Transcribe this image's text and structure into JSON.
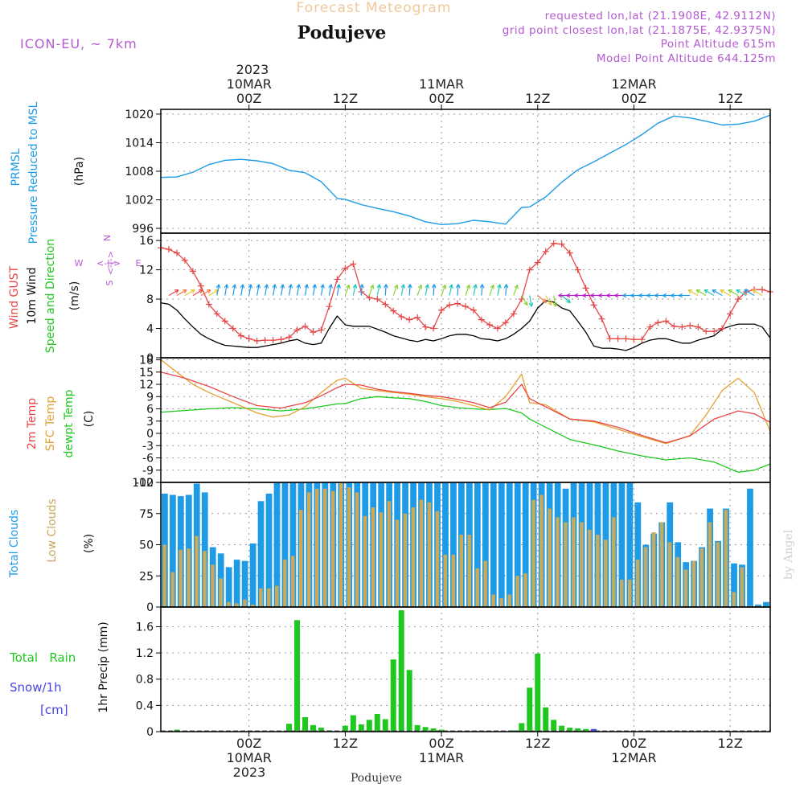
{
  "header": {
    "product": "Forecast Meteogram",
    "location": "Podujeve",
    "model": "ICON-EU, ~ 7km",
    "requested": "requested lon,lat (21.1908E, 42.9112N)",
    "gridpoint": "grid point closest lon,lat (21.1875E, 42.9375N)",
    "point_alt": "Point Altitude 615m",
    "model_alt": "Model Point Altitude 644.125m"
  },
  "footer": {
    "location": "Podujeve",
    "credit": "by Angel"
  },
  "time_axis": {
    "year": "2023",
    "top_ticks": [
      {
        "t": 0,
        "date": "10MAR",
        "hour": "00Z"
      },
      {
        "t": 12,
        "date": "",
        "hour": "12Z"
      },
      {
        "t": 24,
        "date": "11MAR",
        "hour": "00Z"
      },
      {
        "t": 36,
        "date": "",
        "hour": "12Z"
      },
      {
        "t": 48,
        "date": "12MAR",
        "hour": "00Z"
      },
      {
        "t": 60,
        "date": "",
        "hour": "12Z"
      }
    ],
    "bottom_ticks": [
      {
        "t": 0,
        "hour": "00Z",
        "date": "10MAR"
      },
      {
        "t": 12,
        "hour": "12Z",
        "date": ""
      },
      {
        "t": 24,
        "hour": "00Z",
        "date": "11MAR"
      },
      {
        "t": 36,
        "hour": "12Z",
        "date": ""
      },
      {
        "t": 48,
        "hour": "00Z",
        "date": "12MAR"
      },
      {
        "t": 60,
        "hour": "12Z",
        "date": ""
      }
    ],
    "xlim": [
      -11,
      65
    ]
  },
  "labels": {
    "pressure": {
      "name": "PRMSL",
      "desc": "Pressure Reduced to MSL",
      "unit": "(hPa)"
    },
    "wind": {
      "gust": "Wind GUST",
      "wind10m": "10m Wind",
      "dir": "Speed and Direction",
      "unit": "(m/s)",
      "compass_w": "W",
      "compass_e": "E",
      "compass_n": "N",
      "compass_s": "S"
    },
    "temp": {
      "t2m": "2m Temp",
      "sfc": "SFC Temp",
      "dew": "dewpt Temp",
      "unit": "(C)"
    },
    "clouds": {
      "total": "Total Clouds",
      "low": "Low Clouds",
      "unit": "(%)"
    },
    "precip": {
      "rain": "Total   Rain",
      "snow": "Snow/1h",
      "snow_unit": "[cm]",
      "axis": "1hr Precip (mm)"
    }
  },
  "colors": {
    "pressure": "#1e9be6",
    "gust": "#e64646",
    "wind": "#000000",
    "t2m": "#e64646",
    "sfc": "#e6a032",
    "dew": "#1ec81e",
    "total_clouds": "#1e9be6",
    "low_clouds": "#c8aa5a",
    "rain": "#1ec81e",
    "snow": "#4646e6",
    "purple": "#b45ad2",
    "grid": "#9a9a9a"
  },
  "chart_data": [
    {
      "type": "line",
      "title": "PRMSL Pressure Reduced to MSL",
      "ylabel": "(hPa)",
      "ylim": [
        995,
        1021
      ],
      "yticks": [
        996,
        1002,
        1008,
        1014,
        1020
      ],
      "series": [
        {
          "name": "PRMSL",
          "x": [
            -11,
            -9,
            -7,
            -5,
            -3,
            -1,
            1,
            3,
            5,
            7,
            9,
            11,
            12,
            14,
            16,
            18,
            20,
            22,
            24,
            26,
            28,
            30,
            32,
            34,
            35,
            37,
            39,
            41,
            43,
            45,
            47,
            49,
            51,
            53,
            55,
            57,
            59,
            61,
            63,
            65
          ],
          "values": [
            1006.7,
            1006.8,
            1007.8,
            1009.4,
            1010.3,
            1010.5,
            1010.2,
            1009.6,
            1008.2,
            1007.7,
            1005.8,
            1002.3,
            1002.1,
            1001.0,
            1000.2,
            999.5,
            998.6,
            997.4,
            996.8,
            997.0,
            997.7,
            997.4,
            996.9,
            1000.4,
            1000.5,
            1002.6,
            1005.7,
            1008.3,
            1010.0,
            1011.8,
            1013.6,
            1015.7,
            1018.1,
            1019.6,
            1019.2,
            1018.5,
            1017.7,
            1017.9,
            1018.5,
            1019.8
          ]
        }
      ]
    },
    {
      "type": "line",
      "title": "Wind GUST / 10m Wind Speed and Direction",
      "ylabel": "(m/s)",
      "ylim": [
        0,
        17
      ],
      "yticks": [
        0,
        4,
        8,
        12,
        16
      ],
      "series": [
        {
          "name": "Wind GUST",
          "x": [
            -11,
            -10,
            -9,
            -8,
            -7,
            -6,
            -5,
            -4,
            -3,
            -2,
            -1,
            0,
            1,
            2,
            3,
            4,
            5,
            6,
            7,
            8,
            9,
            10,
            11,
            12,
            13,
            14,
            15,
            16,
            17,
            18,
            19,
            20,
            21,
            22,
            23,
            24,
            25,
            26,
            27,
            28,
            29,
            30,
            31,
            32,
            33,
            34,
            35,
            36,
            37,
            38,
            39,
            40,
            41,
            42,
            43,
            44,
            45,
            46,
            47,
            48,
            49,
            50,
            51,
            52,
            53,
            54,
            55,
            56,
            57,
            58,
            59,
            60,
            61,
            62,
            63,
            64,
            65
          ],
          "values": [
            15.0,
            14.8,
            14.3,
            13.3,
            11.8,
            9.8,
            7.3,
            6.0,
            5.0,
            4.0,
            3.0,
            2.6,
            2.3,
            2.4,
            2.4,
            2.5,
            2.8,
            3.8,
            4.3,
            3.5,
            3.8,
            7.0,
            10.7,
            12.2,
            12.8,
            9.0,
            8.2,
            8.0,
            7.3,
            6.4,
            5.6,
            5.2,
            5.5,
            4.2,
            4.0,
            6.5,
            7.2,
            7.4,
            7.0,
            6.5,
            5.2,
            4.5,
            4.0,
            4.8,
            6.0,
            8.0,
            12.0,
            13.0,
            14.5,
            15.6,
            15.5,
            14.3,
            12.0,
            9.5,
            7.2,
            5.3,
            2.6,
            2.6,
            2.6,
            2.5,
            2.5,
            4.2,
            4.8,
            5.0,
            4.3,
            4.2,
            4.4,
            4.2,
            3.6,
            3.6,
            4.0,
            6.0,
            8.0,
            9.0,
            9.3,
            9.3,
            9.0
          ]
        },
        {
          "name": "10m Wind",
          "x": [
            -11,
            -10,
            -9,
            -8,
            -7,
            -6,
            -5,
            -4,
            -3,
            -2,
            -1,
            0,
            1,
            2,
            3,
            4,
            5,
            6,
            7,
            8,
            9,
            10,
            11,
            12,
            13,
            14,
            15,
            16,
            17,
            18,
            19,
            20,
            21,
            22,
            23,
            24,
            25,
            26,
            27,
            28,
            29,
            30,
            31,
            32,
            33,
            34,
            35,
            36,
            37,
            38,
            39,
            40,
            41,
            42,
            43,
            44,
            45,
            46,
            47,
            48,
            49,
            50,
            51,
            52,
            53,
            54,
            55,
            56,
            57,
            58,
            59,
            60,
            61,
            62,
            63,
            64,
            65
          ],
          "values": [
            7.5,
            7.3,
            6.5,
            5.3,
            4.2,
            3.2,
            2.6,
            2.1,
            1.7,
            1.6,
            1.5,
            1.4,
            1.4,
            1.6,
            1.8,
            2.0,
            2.3,
            2.5,
            2.0,
            1.8,
            2.0,
            4.0,
            5.7,
            4.5,
            4.3,
            4.3,
            4.3,
            3.9,
            3.5,
            3.0,
            2.7,
            2.4,
            2.2,
            2.5,
            2.3,
            2.6,
            3.0,
            3.2,
            3.2,
            3.0,
            2.6,
            2.5,
            2.3,
            2.6,
            3.2,
            4.0,
            5.0,
            6.8,
            7.8,
            7.6,
            6.8,
            6.4,
            5.0,
            3.5,
            1.6,
            1.3,
            1.3,
            1.2,
            1.0,
            1.4,
            2.0,
            2.4,
            2.6,
            2.6,
            2.3,
            2.0,
            2.0,
            2.4,
            2.7,
            3.0,
            3.9,
            4.3,
            4.6,
            4.6,
            4.6,
            4.2,
            2.7
          ]
        }
      ]
    },
    {
      "type": "line",
      "title": "2m Temp / SFC Temp / dewpt Temp",
      "ylabel": "(C)",
      "ylim": [
        -12,
        18.5
      ],
      "yticks": [
        -12,
        -9,
        -6,
        -3,
        0,
        3,
        6,
        9,
        12,
        15,
        18
      ],
      "series": [
        {
          "name": "2m Temp",
          "x": [
            -11,
            -8,
            -5,
            -2,
            1,
            4,
            7,
            9,
            11,
            12,
            14,
            16,
            18,
            20,
            22,
            24,
            26,
            28,
            30,
            32,
            34,
            35,
            37,
            40,
            43,
            46,
            49,
            52,
            55,
            58,
            61,
            63,
            65
          ],
          "values": [
            15,
            13.5,
            11.5,
            9,
            6.8,
            6.2,
            7.5,
            9.2,
            11.2,
            12.0,
            11.8,
            10.8,
            10.2,
            9.8,
            9.3,
            9.0,
            8.3,
            7.5,
            6.3,
            7.6,
            12.0,
            8.5,
            6.5,
            3.5,
            3.0,
            1.5,
            -0.5,
            -2.3,
            -0.6,
            3.5,
            5.5,
            4.8,
            2.7
          ]
        },
        {
          "name": "SFC Temp",
          "x": [
            -11,
            -9,
            -7,
            -5,
            -2,
            1,
            3,
            5,
            7,
            9,
            11,
            12,
            14,
            16,
            18,
            20,
            22,
            24,
            26,
            28,
            30,
            32,
            34,
            35,
            37,
            40,
            43,
            46,
            49,
            52,
            55,
            57,
            59,
            61,
            63,
            65
          ],
          "values": [
            18,
            15,
            12,
            10,
            7.5,
            5,
            4,
            4.5,
            6.5,
            10,
            13,
            13.5,
            11,
            10.5,
            10,
            9.6,
            9.0,
            8.5,
            7.8,
            6.8,
            5.7,
            9.0,
            14.5,
            7.5,
            7.0,
            3.5,
            2.8,
            1.0,
            -0.8,
            -2.5,
            -0.5,
            4.5,
            10.5,
            13.5,
            10.0,
            0.5
          ]
        },
        {
          "name": "dewpt Temp",
          "x": [
            -11,
            -8,
            -5,
            -2,
            1,
            4,
            7,
            9,
            11,
            12,
            14,
            16,
            18,
            20,
            22,
            24,
            26,
            28,
            30,
            32,
            34,
            35,
            37,
            40,
            43,
            46,
            49,
            52,
            55,
            58,
            61,
            63,
            65
          ],
          "values": [
            5.2,
            5.6,
            6,
            6.3,
            6,
            5.5,
            6,
            6.6,
            7.2,
            7.3,
            8.5,
            9,
            8.7,
            8.5,
            7.8,
            6.8,
            6.3,
            6.0,
            5.8,
            6.1,
            5.0,
            3.5,
            1.5,
            -1.5,
            -2.8,
            -4.3,
            -5.5,
            -6.5,
            -6.0,
            -7.0,
            -9.5,
            -9.0,
            -7.5
          ]
        }
      ]
    },
    {
      "type": "bar",
      "title": "Total Clouds / Low Clouds",
      "ylabel": "(%)",
      "ylim": [
        0,
        100
      ],
      "yticks": [
        0,
        25,
        50,
        75,
        100
      ],
      "x_start": -10.5,
      "x_step": 1,
      "series": [
        {
          "name": "Total Clouds",
          "values": [
            91,
            90,
            89,
            90,
            99,
            92,
            48,
            43,
            32,
            38,
            37,
            51,
            85,
            91,
            100,
            100,
            100,
            100,
            100,
            100,
            100,
            100,
            100,
            100,
            100,
            100,
            100,
            100,
            100,
            100,
            100,
            100,
            100,
            100,
            100,
            100,
            100,
            100,
            100,
            100,
            100,
            100,
            100,
            100,
            100,
            100,
            100,
            100,
            100,
            100,
            95,
            100,
            100,
            100,
            100,
            100,
            100,
            100,
            100,
            84,
            50,
            59,
            68,
            84,
            52,
            36,
            37,
            48,
            79,
            53,
            79,
            35,
            34,
            95,
            2,
            4,
            3,
            1
          ]
        },
        {
          "name": "Low Clouds",
          "values": [
            50,
            28,
            46,
            47,
            57,
            45,
            34,
            23,
            4,
            3,
            6,
            2,
            15,
            15,
            17,
            38,
            41,
            78,
            92,
            95,
            95,
            93,
            100,
            96,
            92,
            73,
            80,
            76,
            85,
            70,
            75,
            80,
            86,
            84,
            77,
            42,
            42,
            58,
            58,
            31,
            37,
            10,
            7,
            10,
            25,
            27,
            86,
            90,
            79,
            72,
            68,
            72,
            68,
            62,
            58,
            54,
            72,
            22,
            22,
            38,
            48,
            60,
            68,
            52,
            40,
            30,
            37,
            47,
            68,
            52,
            78,
            12,
            32,
            1,
            1,
            0,
            0,
            0
          ]
        }
      ]
    },
    {
      "type": "bar",
      "title": "1hr Precip",
      "ylabel": "1hr Precip (mm)",
      "ylim": [
        0,
        1.9
      ],
      "yticks": [
        0,
        0.4,
        0.8,
        1.2,
        1.6
      ],
      "series": [
        {
          "name": "Total Rain",
          "x": [
            -9,
            5,
            6,
            7,
            8,
            9,
            10,
            12,
            13,
            14,
            15,
            16,
            17,
            18,
            19,
            20,
            21,
            22,
            23,
            24,
            33,
            34,
            35,
            36,
            37,
            38,
            39,
            40,
            41,
            42
          ],
          "values": [
            0.03,
            0.12,
            1.7,
            0.22,
            0.1,
            0.06,
            0.02,
            0.09,
            0.25,
            0.11,
            0.18,
            0.27,
            0.19,
            1.1,
            1.85,
            0.94,
            0.1,
            0.07,
            0.05,
            0.03,
            0.02,
            0.13,
            0.67,
            1.19,
            0.37,
            0.18,
            0.09,
            0.06,
            0.05,
            0.04
          ]
        },
        {
          "name": "Snow/1h",
          "x": [
            43
          ],
          "values": [
            0.04
          ]
        }
      ]
    }
  ]
}
